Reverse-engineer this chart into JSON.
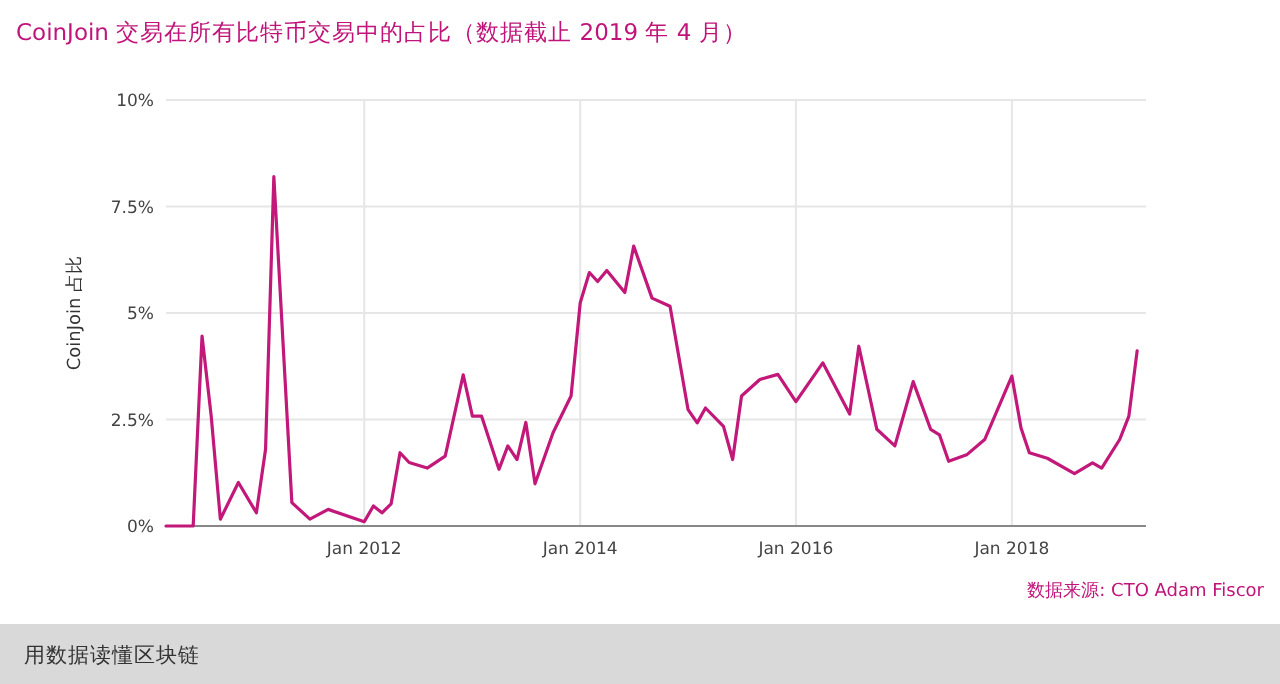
{
  "chart_data": {
    "type": "line",
    "title": "CoinJoin 交易在所有比特币交易中的占比（数据截止 2019 年 4 月）",
    "ylabel": "CoinJoin 占比",
    "annotations": [
      "数据来源: CTO Adam Fiscor",
      "用数据读懂区块链"
    ],
    "x": [
      "2010-03",
      "2010-06",
      "2010-07",
      "2010-08",
      "2010-09",
      "2010-11",
      "2011-01",
      "2011-02",
      "2011-03",
      "2011-05",
      "2011-07",
      "2011-09",
      "2012-01",
      "2012-02",
      "2012-03",
      "2012-04",
      "2012-05",
      "2012-06",
      "2012-08",
      "2012-10",
      "2012-12",
      "2013-01",
      "2013-02",
      "2013-04",
      "2013-05",
      "2013-06",
      "2013-07",
      "2013-08",
      "2013-10",
      "2013-12",
      "2014-01",
      "2014-02",
      "2014-03",
      "2014-04",
      "2014-06",
      "2014-07",
      "2014-09",
      "2014-11",
      "2015-01",
      "2015-02",
      "2015-03",
      "2015-05",
      "2015-06",
      "2015-07",
      "2015-09",
      "2015-11",
      "2016-01",
      "2016-03",
      "2016-04",
      "2016-07",
      "2016-08",
      "2016-10",
      "2016-12",
      "2017-02",
      "2017-04",
      "2017-05",
      "2017-06",
      "2017-08",
      "2017-10",
      "2018-01",
      "2018-02",
      "2018-03",
      "2018-05",
      "2018-08",
      "2018-10",
      "2018-11",
      "2019-01",
      "2019-02",
      "2019-03"
    ],
    "series": [
      {
        "color": "#c2187a",
        "values": [
          0,
          0,
          4.46,
          2.58,
          0.16,
          1.02,
          0.31,
          1.8,
          8.2,
          0.55,
          0.16,
          0.39,
          0.1,
          0.47,
          0.31,
          0.52,
          1.72,
          1.49,
          1.36,
          1.64,
          3.55,
          2.58,
          2.58,
          1.33,
          1.88,
          1.56,
          2.43,
          0.99,
          2.19,
          3.05,
          5.24,
          5.95,
          5.74,
          6.0,
          5.48,
          6.57,
          5.35,
          5.16,
          2.73,
          2.42,
          2.77,
          2.34,
          1.56,
          3.05,
          3.44,
          3.56,
          2.92,
          3.52,
          3.83,
          2.63,
          4.22,
          2.27,
          1.88,
          3.39,
          2.27,
          2.14,
          1.52,
          1.67,
          2.03,
          3.52,
          2.3,
          1.72,
          1.59,
          1.23,
          1.48,
          1.36,
          2.03,
          2.58,
          4.11
        ]
      }
    ],
    "xlim": [
      "2010-03-01",
      "2019-03-31"
    ],
    "xticks": [
      {
        "value": "2012-01-01",
        "label": "Jan 2012"
      },
      {
        "value": "2014-01-01",
        "label": "Jan 2014"
      },
      {
        "value": "2016-01-01",
        "label": "Jan 2016"
      },
      {
        "value": "2018-01-01",
        "label": "Jan 2018"
      }
    ],
    "ylim": [
      0,
      10
    ],
    "yticks": [
      {
        "value": 0,
        "label": "0%"
      },
      {
        "value": 2.5,
        "label": "2.5%"
      },
      {
        "value": 5,
        "label": "5%"
      },
      {
        "value": 7.5,
        "label": "7.5%"
      },
      {
        "value": 10,
        "label": "10%"
      }
    ],
    "grid": true,
    "marker": "none",
    "line_style": "solid"
  }
}
